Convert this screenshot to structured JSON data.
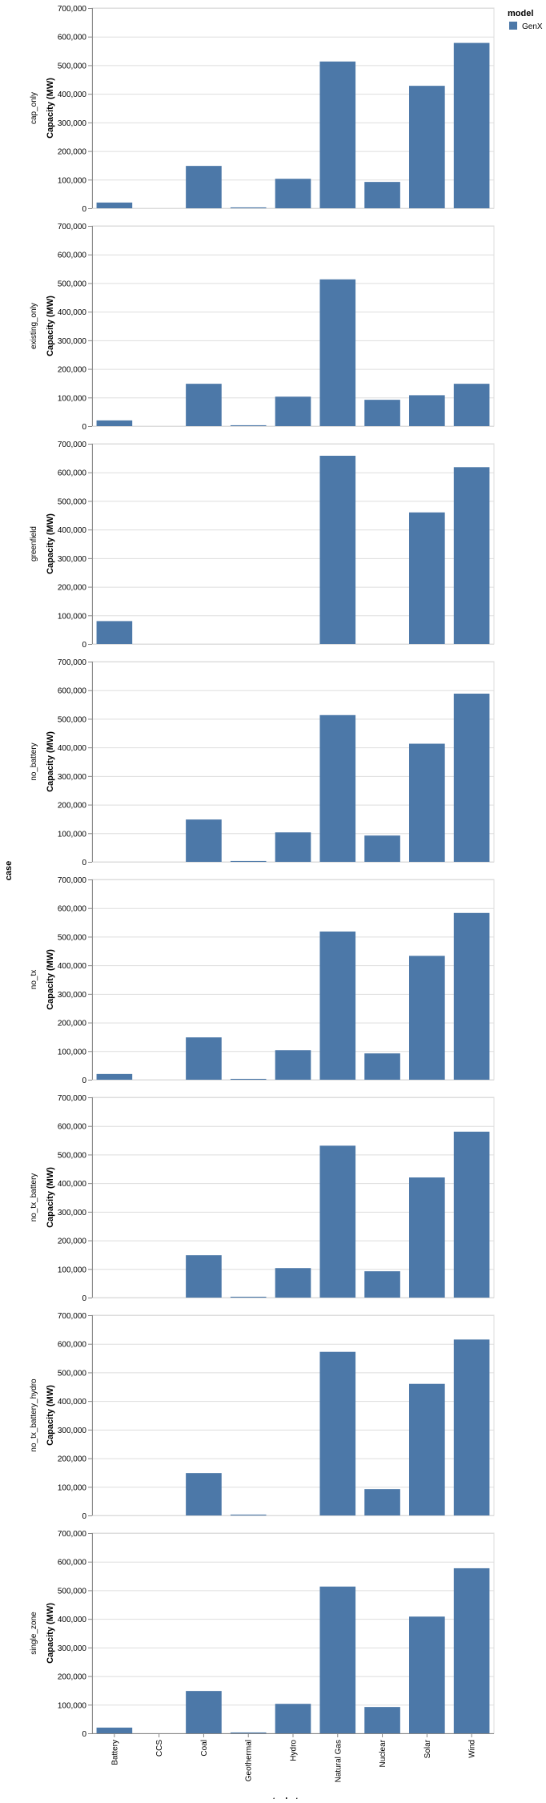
{
  "legend": {
    "title": "model",
    "items": [
      {
        "label": "GenX",
        "color": "#4c78a8"
      }
    ]
  },
  "row_title": "case",
  "x_title": "tech_type",
  "y_title": "Capacity (MW)",
  "colors": {
    "bar": "#4c78a8",
    "grid": "#dddddd",
    "axis": "#888888",
    "text": "#000000"
  },
  "chart_data": {
    "type": "bar",
    "layout": "faceted-rows",
    "categories": [
      "Battery",
      "CCS",
      "Coal",
      "Geothermal",
      "Hydro",
      "Natural Gas",
      "Nuclear",
      "Solar",
      "Wind"
    ],
    "ylim": [
      0,
      700000
    ],
    "yticks": [
      0,
      100000,
      200000,
      300000,
      400000,
      500000,
      600000,
      700000
    ],
    "grid": true,
    "legend_position": "top-right",
    "facets": [
      {
        "name": "cap_only",
        "values": [
          20000,
          0,
          148000,
          3000,
          103000,
          513000,
          92000,
          428000,
          578000
        ]
      },
      {
        "name": "existing_only",
        "values": [
          20000,
          0,
          148000,
          3000,
          103000,
          513000,
          92000,
          108000,
          148000
        ]
      },
      {
        "name": "greenfield",
        "values": [
          80000,
          0,
          0,
          0,
          0,
          658000,
          0,
          460000,
          618000
        ]
      },
      {
        "name": "no_battery",
        "values": [
          0,
          0,
          148000,
          3000,
          103000,
          513000,
          92000,
          413000,
          588000
        ]
      },
      {
        "name": "no_tx",
        "values": [
          20000,
          0,
          148000,
          3000,
          103000,
          518000,
          92000,
          433000,
          583000
        ]
      },
      {
        "name": "no_tx_battery",
        "values": [
          0,
          0,
          148000,
          3000,
          103000,
          531000,
          92000,
          420000,
          580000
        ]
      },
      {
        "name": "no_tx_battery_hydro",
        "values": [
          0,
          0,
          148000,
          3000,
          0,
          572000,
          92000,
          460000,
          615000
        ]
      },
      {
        "name": "single_zone",
        "values": [
          20000,
          0,
          148000,
          3000,
          103000,
          513000,
          92000,
          408000,
          577000
        ]
      }
    ]
  }
}
